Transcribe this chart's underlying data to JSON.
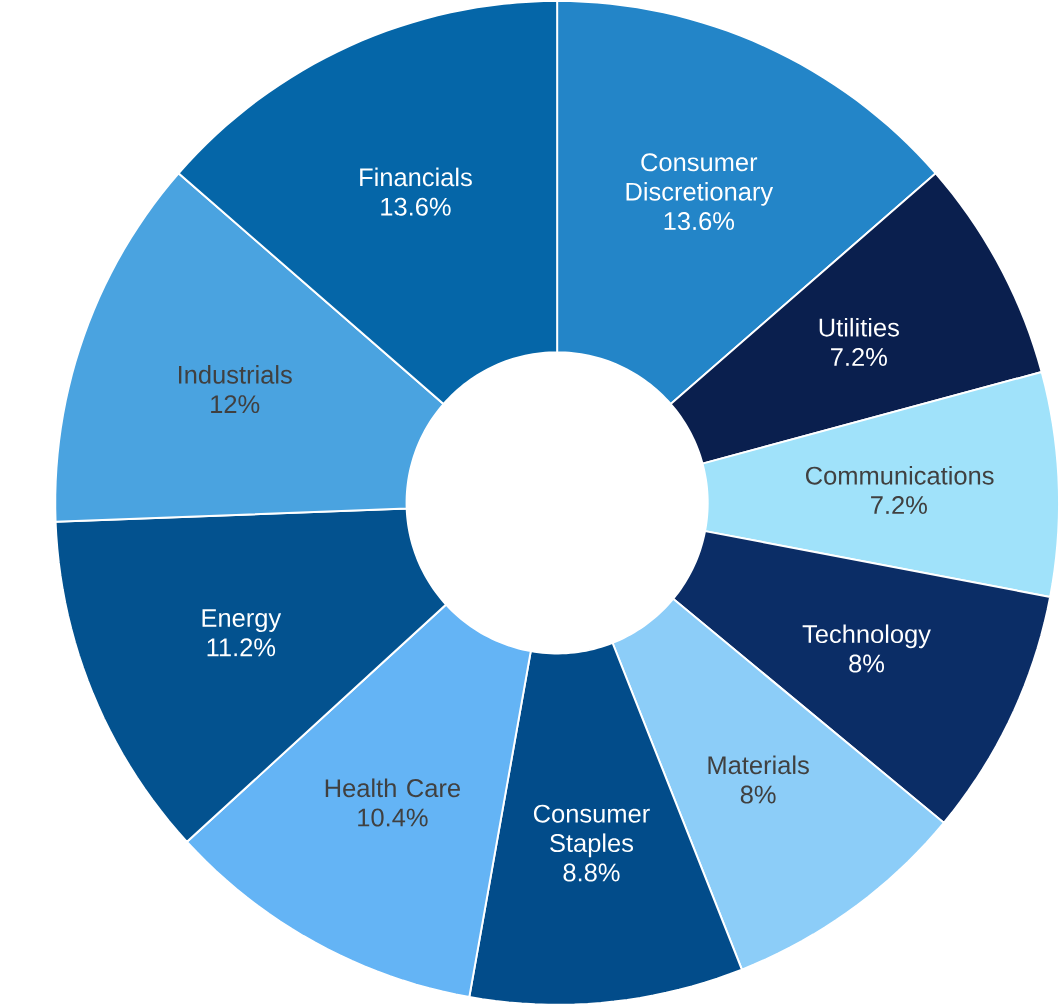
{
  "chart_data": {
    "type": "donut",
    "categories": [
      "Consumer Discretionary",
      "Utilities",
      "Communications",
      "Technology",
      "Materials",
      "Consumer Staples",
      "Health Care",
      "Energy",
      "Industrials",
      "Financials"
    ],
    "values": [
      13.6,
      7.2,
      7.2,
      8,
      8,
      8.8,
      10.4,
      11.2,
      12,
      13.6
    ],
    "value_labels": [
      "13.6%",
      "7.2%",
      "7.2%",
      "8%",
      "8%",
      "8.8%",
      "10.4%",
      "11.2%",
      "12%",
      "13.6%"
    ],
    "colors": [
      "#2385c8",
      "#0a1f4e",
      "#a0e2fa",
      "#0b2d66",
      "#8ccdf8",
      "#024c8a",
      "#64b4f5",
      "#03528f",
      "#4aa3e0",
      "#0566a8"
    ]
  }
}
